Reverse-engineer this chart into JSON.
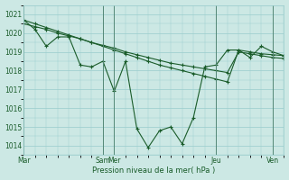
{
  "xlabel": "Pression niveau de la mer( hPa )",
  "bg_color": "#cce8e4",
  "grid_color": "#99cccc",
  "line_color": "#1a5c2a",
  "vline_color": "#558877",
  "ylim": [
    1013.5,
    1021.5
  ],
  "yticks": [
    1014,
    1015,
    1016,
    1017,
    1018,
    1019,
    1020,
    1021
  ],
  "xlim": [
    0,
    23
  ],
  "series1_x": [
    0,
    1,
    2,
    3,
    4,
    5,
    6,
    7,
    8,
    9,
    10,
    11,
    12,
    13,
    14,
    15,
    16,
    17,
    18,
    19,
    20,
    21,
    22,
    23
  ],
  "series1_y": [
    1020.7,
    1020.2,
    1019.3,
    1019.8,
    1019.8,
    1018.3,
    1018.2,
    1018.5,
    1016.9,
    1018.5,
    1014.9,
    1013.9,
    1014.8,
    1015.0,
    1014.1,
    1015.5,
    1018.2,
    1018.3,
    1019.1,
    1019.1,
    1018.7,
    1019.3,
    1019.0,
    1018.8
  ],
  "series2_x": [
    0,
    1,
    2,
    3,
    4,
    5,
    6,
    7,
    8,
    9,
    10,
    11,
    12,
    13,
    14,
    15,
    16,
    17,
    18,
    19,
    20,
    21,
    22,
    23
  ],
  "series2_y": [
    1020.7,
    1020.5,
    1020.3,
    1020.1,
    1019.9,
    1019.7,
    1019.5,
    1019.3,
    1019.1,
    1018.9,
    1018.7,
    1018.5,
    1018.3,
    1018.15,
    1018.0,
    1017.85,
    1017.7,
    1017.55,
    1017.4,
    1019.1,
    1019.0,
    1018.9,
    1018.85,
    1018.8
  ],
  "series3_x": [
    0,
    1,
    2,
    3,
    4,
    5,
    6,
    7,
    8,
    9,
    10,
    11,
    12,
    13,
    14,
    15,
    16,
    17,
    18,
    19,
    20,
    21,
    22,
    23
  ],
  "series3_y": [
    1020.5,
    1020.35,
    1020.2,
    1020.0,
    1019.85,
    1019.7,
    1019.5,
    1019.35,
    1019.2,
    1019.0,
    1018.85,
    1018.7,
    1018.55,
    1018.4,
    1018.3,
    1018.2,
    1018.1,
    1018.0,
    1017.9,
    1019.0,
    1018.9,
    1018.8,
    1018.7,
    1018.65
  ],
  "xtick_labels": [
    "Mar",
    "",
    "",
    "",
    "",
    "",
    "",
    "Sam",
    "Mer",
    "",
    "",
    "",
    "",
    "",
    "",
    "",
    "",
    "Jeu",
    "",
    "",
    "",
    "",
    "Ven",
    ""
  ],
  "xtick_positions": [
    0,
    7,
    8,
    17,
    22
  ],
  "xtick_display": [
    "Mar",
    "Sam",
    "Mer",
    "Jeu",
    "Ven"
  ],
  "vline_positions": [
    0,
    7,
    8,
    17,
    22
  ]
}
